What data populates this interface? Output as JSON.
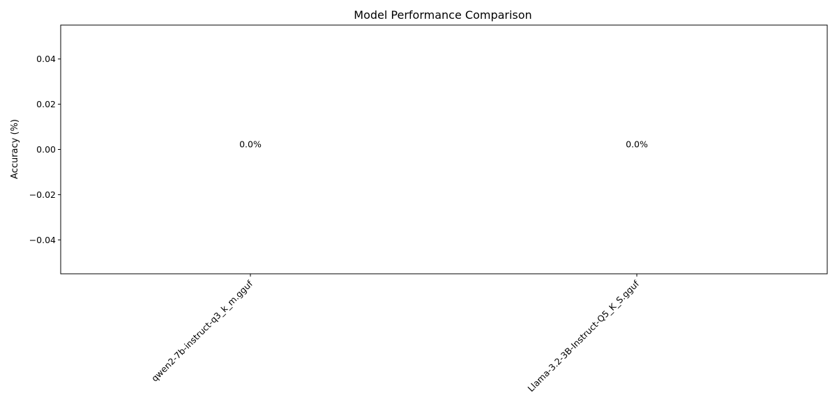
{
  "chart_data": {
    "type": "bar",
    "title": "Model Performance Comparison",
    "xlabel": "",
    "ylabel": "Accuracy (%)",
    "categories": [
      "qwen2-7b-instruct-q3_k_m.gguf",
      "Llama-3.2-3B-Instruct-Q5_K_S.gguf"
    ],
    "values": [
      0.0,
      0.0
    ],
    "value_labels": [
      "0.0%",
      "0.0%"
    ],
    "ylim": [
      -0.055,
      0.055
    ],
    "yticks": [
      -0.04,
      -0.02,
      0.0,
      0.02,
      0.04
    ],
    "ytick_labels": [
      "−0.04",
      "−0.02",
      "0.00",
      "0.02",
      "0.04"
    ],
    "grid": false,
    "legend": "none",
    "bar_color": "#1f77b4"
  }
}
